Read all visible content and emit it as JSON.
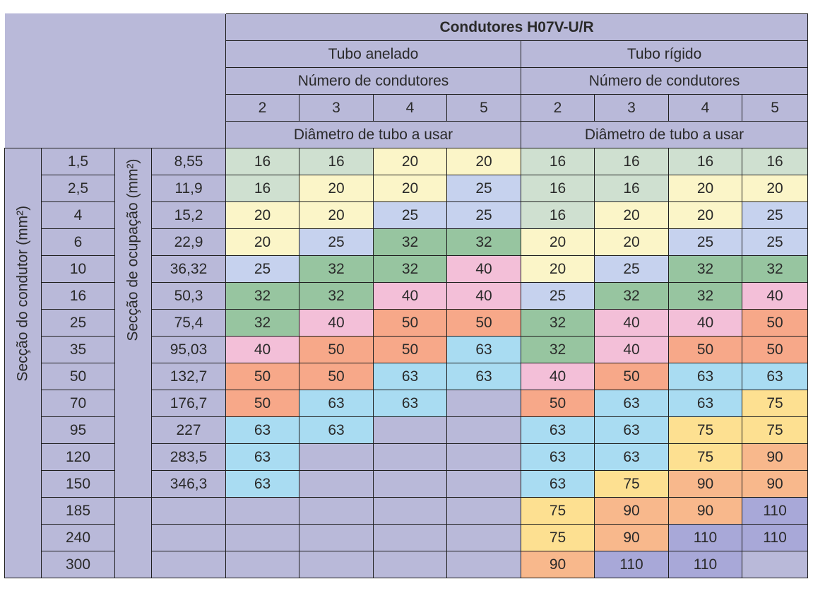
{
  "header": {
    "title": "Condutores H07V-U/R",
    "groups": [
      {
        "name": "Tubo anelado",
        "sub": "Número de condutores",
        "foot": "Diâmetro de tubo a usar"
      },
      {
        "name": "Tubo rígido",
        "sub": "Número de condutores",
        "foot": "Diâmetro de tubo a usar"
      }
    ],
    "conductor_counts": [
      "2",
      "3",
      "4",
      "5",
      "2",
      "3",
      "4",
      "5"
    ]
  },
  "row_labels": {
    "section": "Secção do condutor (mm²)",
    "occupation": "Secção de ocupação (mm²)"
  },
  "rows": [
    {
      "section": "1,5",
      "occupation": "8,55",
      "values": [
        "16",
        "16",
        "20",
        "20",
        "16",
        "16",
        "16",
        "16"
      ],
      "colors": [
        "green-light",
        "green-light",
        "yellow-light",
        "yellow-light",
        "green-light",
        "green-light",
        "green-light",
        "green-light"
      ]
    },
    {
      "section": "2,5",
      "occupation": "11,9",
      "values": [
        "16",
        "20",
        "20",
        "25",
        "16",
        "16",
        "20",
        "20"
      ],
      "colors": [
        "green-light",
        "yellow-light",
        "yellow-light",
        "blue-light",
        "green-light",
        "green-light",
        "yellow-light",
        "yellow-light"
      ]
    },
    {
      "section": "4",
      "occupation": "15,2",
      "values": [
        "20",
        "20",
        "25",
        "25",
        "16",
        "20",
        "20",
        "25"
      ],
      "colors": [
        "yellow-light",
        "yellow-light",
        "blue-light",
        "blue-light",
        "green-light",
        "yellow-light",
        "yellow-light",
        "blue-light"
      ]
    },
    {
      "section": "6",
      "occupation": "22,9",
      "values": [
        "20",
        "25",
        "32",
        "32",
        "20",
        "20",
        "25",
        "25"
      ],
      "colors": [
        "yellow-light",
        "blue-light",
        "green",
        "green",
        "yellow-light",
        "yellow-light",
        "blue-light",
        "blue-light"
      ]
    },
    {
      "section": "10",
      "occupation": "36,32",
      "values": [
        "25",
        "32",
        "32",
        "40",
        "20",
        "25",
        "32",
        "32"
      ],
      "colors": [
        "blue-light",
        "green",
        "green",
        "pink",
        "yellow-light",
        "blue-light",
        "green",
        "green"
      ]
    },
    {
      "section": "16",
      "occupation": "50,3",
      "values": [
        "32",
        "32",
        "40",
        "40",
        "25",
        "32",
        "32",
        "40"
      ],
      "colors": [
        "green",
        "green",
        "pink",
        "pink",
        "blue-light",
        "green",
        "green",
        "pink"
      ]
    },
    {
      "section": "25",
      "occupation": "75,4",
      "values": [
        "32",
        "40",
        "50",
        "50",
        "32",
        "40",
        "40",
        "50"
      ],
      "colors": [
        "green",
        "pink",
        "orange",
        "orange",
        "green",
        "pink",
        "pink",
        "orange"
      ]
    },
    {
      "section": "35",
      "occupation": "95,03",
      "values": [
        "40",
        "50",
        "50",
        "63",
        "32",
        "40",
        "50",
        "50"
      ],
      "colors": [
        "pink",
        "orange",
        "orange",
        "cyan",
        "green",
        "pink",
        "orange",
        "orange"
      ]
    },
    {
      "section": "50",
      "occupation": "132,7",
      "values": [
        "50",
        "50",
        "63",
        "63",
        "40",
        "50",
        "63",
        "63"
      ],
      "colors": [
        "orange",
        "orange",
        "cyan",
        "cyan",
        "pink",
        "orange",
        "cyan",
        "cyan"
      ]
    },
    {
      "section": "70",
      "occupation": "176,7",
      "values": [
        "50",
        "63",
        "63",
        "",
        "50",
        "63",
        "63",
        "75"
      ],
      "colors": [
        "orange",
        "cyan",
        "cyan",
        "empty",
        "orange",
        "cyan",
        "cyan",
        "yellow"
      ]
    },
    {
      "section": "95",
      "occupation": "227",
      "values": [
        "63",
        "63",
        "",
        "",
        "63",
        "63",
        "75",
        "75"
      ],
      "colors": [
        "cyan",
        "cyan",
        "empty",
        "empty",
        "cyan",
        "cyan",
        "yellow",
        "yellow"
      ]
    },
    {
      "section": "120",
      "occupation": "283,5",
      "values": [
        "63",
        "",
        "",
        "",
        "63",
        "63",
        "75",
        "90"
      ],
      "colors": [
        "cyan",
        "empty",
        "empty",
        "empty",
        "cyan",
        "cyan",
        "yellow",
        "orange-light"
      ]
    },
    {
      "section": "150",
      "occupation": "346,3",
      "values": [
        "63",
        "",
        "",
        "",
        "63",
        "75",
        "90",
        "90"
      ],
      "colors": [
        "cyan",
        "empty",
        "empty",
        "empty",
        "cyan",
        "yellow",
        "orange-light",
        "orange-light"
      ]
    },
    {
      "section": "185",
      "occupation": "",
      "values": [
        "",
        "",
        "",
        "",
        "75",
        "90",
        "90",
        "110"
      ],
      "colors": [
        "empty",
        "empty",
        "empty",
        "empty",
        "yellow",
        "orange-light",
        "orange-light",
        "lavender"
      ]
    },
    {
      "section": "240",
      "occupation": "",
      "values": [
        "",
        "",
        "",
        "",
        "75",
        "90",
        "110",
        "110"
      ],
      "colors": [
        "empty",
        "empty",
        "empty",
        "empty",
        "yellow",
        "orange-light",
        "lavender",
        "lavender"
      ]
    },
    {
      "section": "300",
      "occupation": "",
      "values": [
        "",
        "",
        "",
        "",
        "90",
        "110",
        "110",
        ""
      ],
      "colors": [
        "empty",
        "empty",
        "empty",
        "empty",
        "orange-light",
        "lavender",
        "lavender",
        "empty"
      ]
    }
  ]
}
